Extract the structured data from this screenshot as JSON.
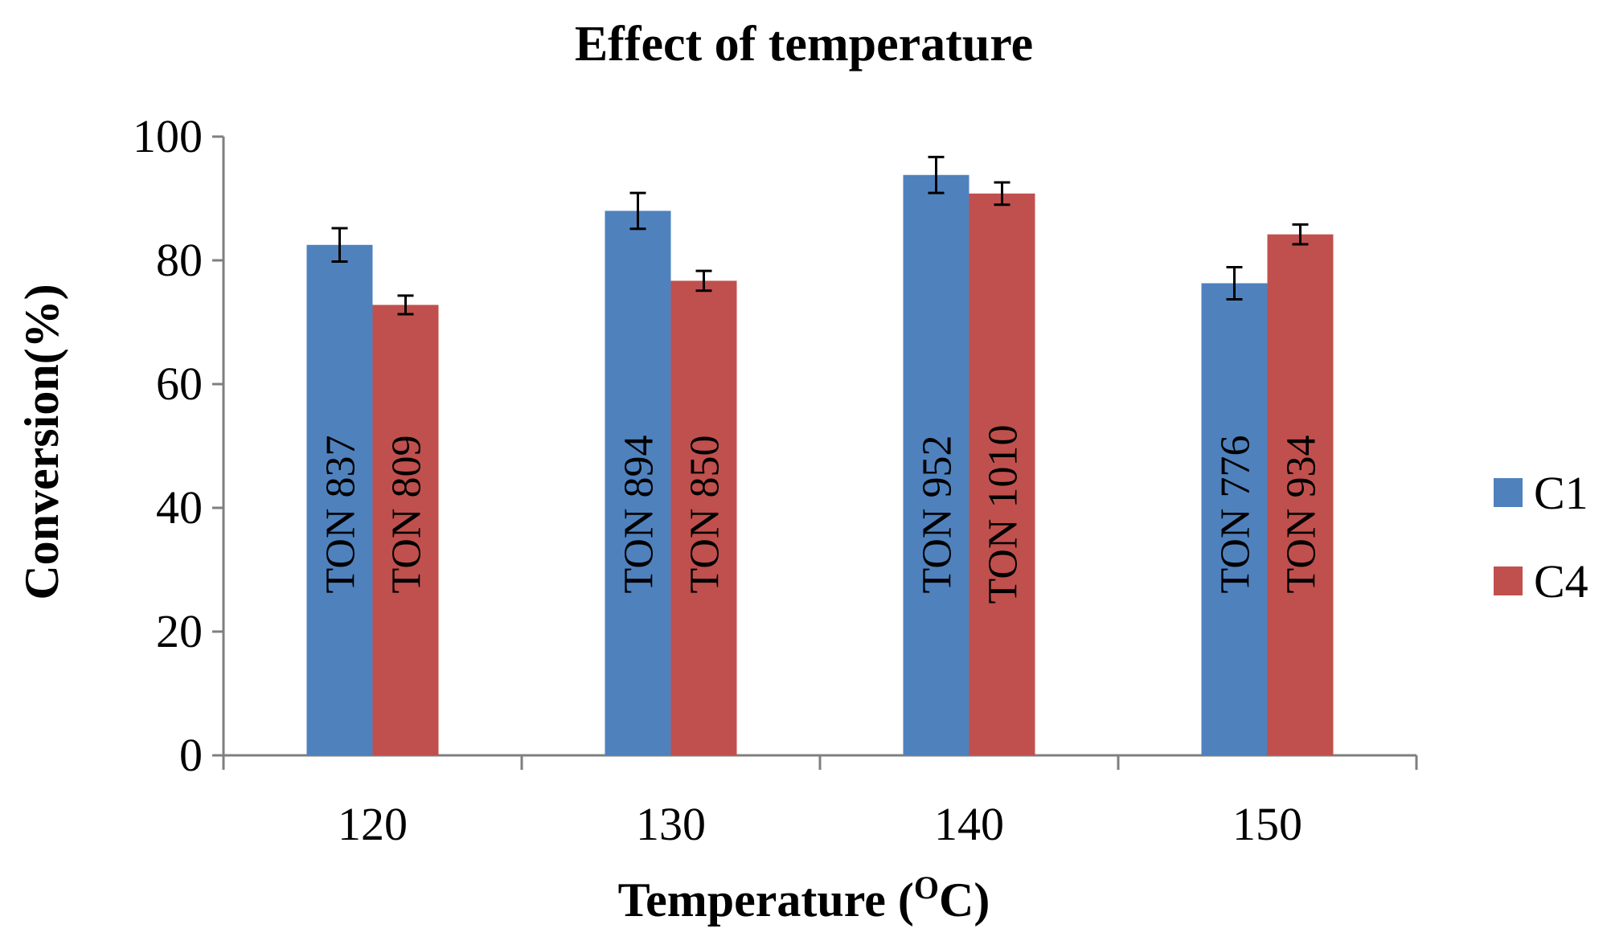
{
  "chart_data": {
    "type": "bar",
    "title": "Effect of temperature",
    "xlabel": "Temperature (",
    "xlabel_sup": "O",
    "xlabel_end": "C)",
    "ylabel": "Conversion(%)",
    "ylim": [
      0,
      100
    ],
    "yticks": [
      "0",
      "20",
      "40",
      "60",
      "80",
      "100"
    ],
    "categories": [
      "120",
      "130",
      "140",
      "150"
    ],
    "series": [
      {
        "name": "C1",
        "color": "#4F81BD",
        "values": [
          82.5,
          88,
          93.8,
          76.3
        ],
        "errors": [
          2.7,
          2.9,
          2.9,
          2.6
        ],
        "labels": [
          "TON 837",
          "TON 894",
          "TON 952",
          "TON 776"
        ]
      },
      {
        "name": "C4",
        "color": "#C0504D",
        "values": [
          72.8,
          76.7,
          90.8,
          84.2
        ],
        "errors": [
          1.5,
          1.6,
          1.8,
          1.6
        ],
        "labels": [
          "TON 809",
          "TON 850",
          "TON 1010",
          "TON 934"
        ]
      }
    ],
    "legend_position": "right"
  }
}
